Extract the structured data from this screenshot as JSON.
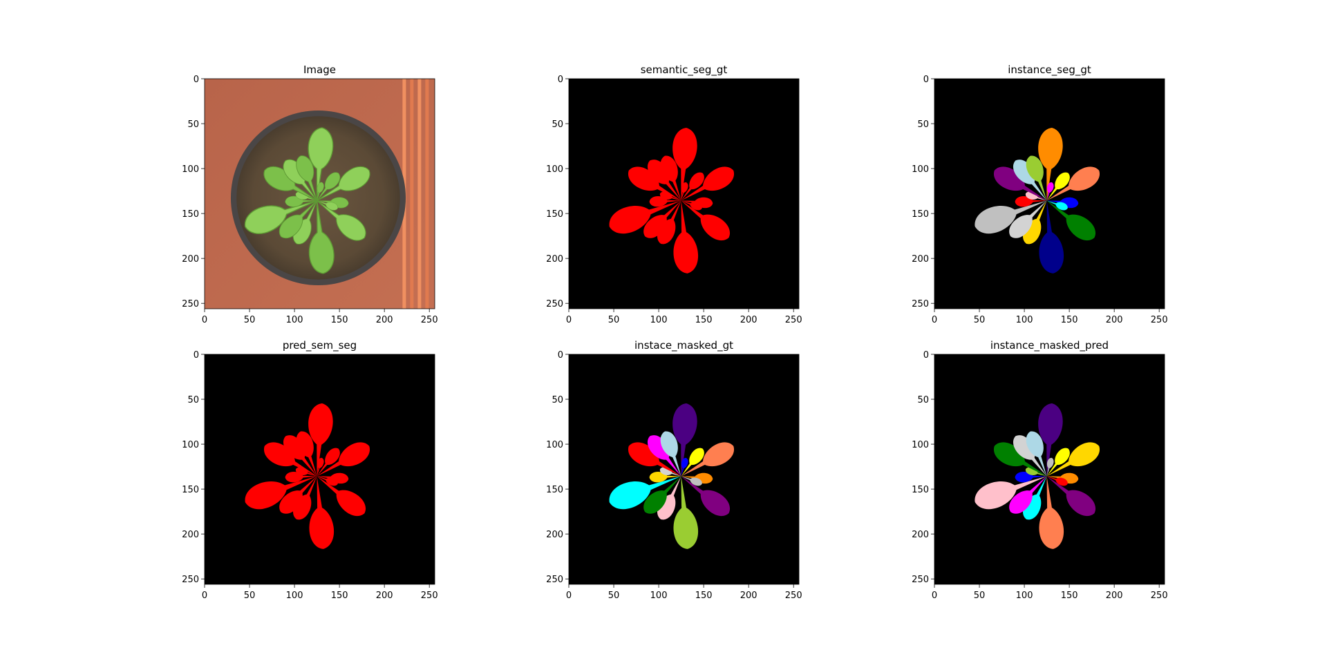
{
  "figure": {
    "panels": [
      {
        "title": "Image",
        "kind": "photo"
      },
      {
        "title": "semantic_seg_gt",
        "kind": "semantic",
        "colors": [
          "#ff0000"
        ]
      },
      {
        "title": "instance_seg_gt",
        "kind": "instance",
        "colors": [
          "#ff8c00",
          "#ffff00",
          "#ff7f50",
          "#0000ff",
          "#008000",
          "#00008b",
          "#ffd700",
          "#d3d3d3",
          "#c0c0c0",
          "#ff0000",
          "#ffc0cb",
          "#800080",
          "#add8e6",
          "#9acd32",
          "#00ffff",
          "#ff00ff"
        ]
      },
      {
        "title": "pred_sem_seg",
        "kind": "semantic",
        "colors": [
          "#ff0000"
        ]
      },
      {
        "title": "instace_masked_gt",
        "kind": "instance",
        "colors": [
          "#4b0082",
          "#ffff00",
          "#ff7f50",
          "#ff8c00",
          "#800080",
          "#9acd32",
          "#ffc0cb",
          "#008000",
          "#00ffff",
          "#ffd700",
          "#d3d3d3",
          "#ff0000",
          "#ff00ff",
          "#add8e6",
          "#c0c0c0",
          "#0000ff"
        ]
      },
      {
        "title": "instance_masked_pred",
        "kind": "instance",
        "colors": [
          "#4b0082",
          "#ffff00",
          "#ffd700",
          "#ff8c00",
          "#800080",
          "#ff7f50",
          "#00ffff",
          "#ff00ff",
          "#ffc0cb",
          "#0000ff",
          "#9acd32",
          "#008000",
          "#d3d3d3",
          "#add8e6",
          "#ff0000",
          "#c0c0c0"
        ]
      }
    ],
    "axes": {
      "xticks": [
        "0",
        "50",
        "100",
        "150",
        "200",
        "250"
      ],
      "yticks": [
        "0",
        "50",
        "100",
        "150",
        "200",
        "250"
      ],
      "range": [
        0,
        256
      ]
    }
  }
}
